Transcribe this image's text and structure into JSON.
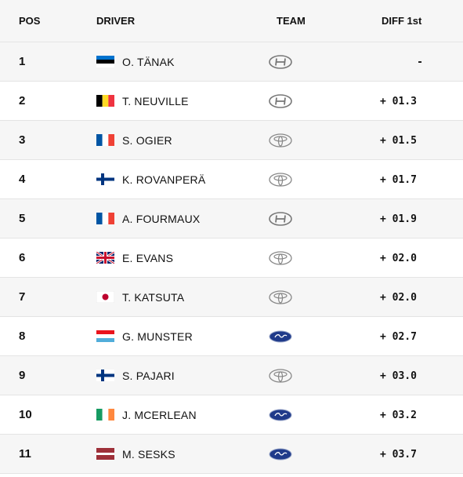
{
  "header": {
    "pos": "POS",
    "driver": "DRIVER",
    "team": "TEAM",
    "diff": "DIFF 1st"
  },
  "colors": {
    "row_alt": "#f6f6f6",
    "row": "#ffffff",
    "border": "#e4e4e4"
  },
  "rows": [
    {
      "pos": "1",
      "flag": "estonia-flag",
      "driver": "O. TÄNAK",
      "team": "hyundai-logo",
      "diff": "-"
    },
    {
      "pos": "2",
      "flag": "belgium-flag",
      "driver": "T. NEUVILLE",
      "team": "hyundai-logo",
      "diff": "+ 01.3"
    },
    {
      "pos": "3",
      "flag": "france-flag",
      "driver": "S. OGIER",
      "team": "toyota-logo",
      "diff": "+ 01.5"
    },
    {
      "pos": "4",
      "flag": "finland-flag",
      "driver": "K. ROVANPERÄ",
      "team": "toyota-logo",
      "diff": "+ 01.7"
    },
    {
      "pos": "5",
      "flag": "france-flag",
      "driver": "A. FOURMAUX",
      "team": "hyundai-logo",
      "diff": "+ 01.9"
    },
    {
      "pos": "6",
      "flag": "uk-flag",
      "driver": "E. EVANS",
      "team": "toyota-logo",
      "diff": "+ 02.0"
    },
    {
      "pos": "7",
      "flag": "japan-flag",
      "driver": "T. KATSUTA",
      "team": "toyota-logo",
      "diff": "+ 02.0"
    },
    {
      "pos": "8",
      "flag": "luxembourg-flag",
      "driver": "G. MUNSTER",
      "team": "ford-logo",
      "diff": "+ 02.7"
    },
    {
      "pos": "9",
      "flag": "finland-flag",
      "driver": "S. PAJARI",
      "team": "toyota-logo",
      "diff": "+ 03.0"
    },
    {
      "pos": "10",
      "flag": "ireland-flag",
      "driver": "J. MCERLEAN",
      "team": "ford-logo",
      "diff": "+ 03.2"
    },
    {
      "pos": "11",
      "flag": "latvia-flag",
      "driver": "M. SESKS",
      "team": "ford-logo",
      "diff": "+ 03.7"
    }
  ]
}
